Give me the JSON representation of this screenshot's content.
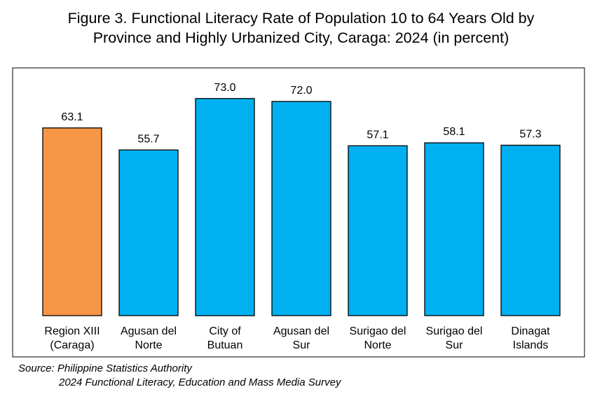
{
  "chart_data": {
    "type": "bar",
    "title": "Figure 3. Functional Literacy Rate of Population 10 to 64 Years Old by Province and Highly Urbanized City, Caraga: 2024 (in percent)",
    "title_lines": [
      "Figure 3. Functional Literacy Rate of Population 10 to 64 Years Old by",
      "Province and Highly Urbanized City, Caraga: 2024 (in percent)"
    ],
    "categories": [
      "Region XIII (Caraga)",
      "Agusan del Norte",
      "City of Butuan",
      "Agusan del Sur",
      "Surigao del Norte",
      "Surigao del Sur",
      "Dinagat Islands"
    ],
    "category_lines": [
      [
        "Region XIII",
        "(Caraga)"
      ],
      [
        "Agusan del",
        "Norte"
      ],
      [
        "City of",
        "Butuan"
      ],
      [
        "Agusan del",
        "Sur"
      ],
      [
        "Surigao del",
        "Norte"
      ],
      [
        "Surigao del",
        "Sur"
      ],
      [
        "Dinagat",
        "Islands"
      ]
    ],
    "values": [
      63.1,
      55.7,
      73.0,
      72.0,
      57.1,
      58.1,
      57.3
    ],
    "value_labels": [
      "63.1",
      "55.7",
      "73.0",
      "72.0",
      "57.1",
      "58.1",
      "57.3"
    ],
    "bar_colors": [
      "#F79646",
      "#00B0F0",
      "#00B0F0",
      "#00B0F0",
      "#00B0F0",
      "#00B0F0",
      "#00B0F0"
    ],
    "bar_outline_color": "#000000",
    "xlabel": "",
    "ylabel": "",
    "ylim": [
      0,
      82
    ],
    "grid": false,
    "legend": "none"
  },
  "source": {
    "line1": "Source: Philippine Statistics Authority",
    "line2": "2024 Functional Literacy, Education and Mass Media Survey"
  }
}
